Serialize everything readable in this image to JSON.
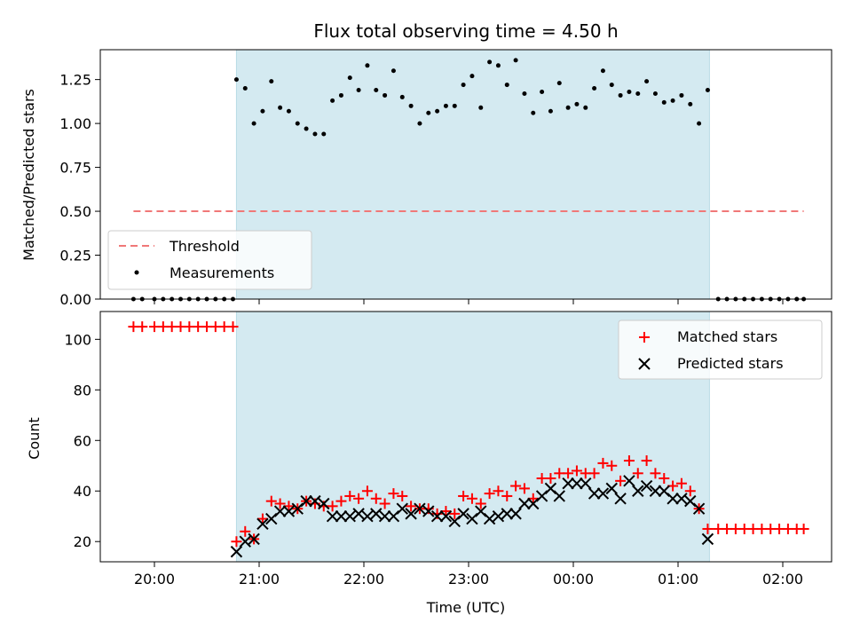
{
  "chart_data": [
    {
      "type": "scatter",
      "title": "Flux total observing time = 4.50 h",
      "xlabel": "",
      "ylabel": "Matched/Predicted stars",
      "ylim": [
        0,
        1.42
      ],
      "yticks": [
        "0.00",
        "0.25",
        "0.50",
        "0.75",
        "1.00",
        "1.25"
      ],
      "ytick_values": [
        0,
        0.25,
        0.5,
        0.75,
        1.0,
        1.25
      ],
      "legend_position": "lower-left",
      "shaded_span": [
        "20:47",
        "01:18"
      ],
      "threshold": {
        "name": "Threshold",
        "value": 0.5,
        "x_start": "19:48",
        "x_end": "02:12",
        "color": "#f07878"
      },
      "series": [
        {
          "name": "Measurements",
          "marker": "dot",
          "color": "#000000",
          "points": [
            [
              "19:48",
              0.0
            ],
            [
              "19:53",
              0.0
            ],
            [
              "20:00",
              0.0
            ],
            [
              "20:05",
              0.0
            ],
            [
              "20:10",
              0.0
            ],
            [
              "20:15",
              0.0
            ],
            [
              "20:20",
              0.0
            ],
            [
              "20:25",
              0.0
            ],
            [
              "20:30",
              0.0
            ],
            [
              "20:35",
              0.0
            ],
            [
              "20:40",
              0.0
            ],
            [
              "20:45",
              0.0
            ],
            [
              "20:47",
              1.25
            ],
            [
              "20:52",
              1.2
            ],
            [
              "20:57",
              1.0
            ],
            [
              "21:02",
              1.07
            ],
            [
              "21:07",
              1.24
            ],
            [
              "21:12",
              1.09
            ],
            [
              "21:17",
              1.07
            ],
            [
              "21:22",
              1.0
            ],
            [
              "21:27",
              0.97
            ],
            [
              "21:32",
              0.94
            ],
            [
              "21:37",
              0.94
            ],
            [
              "21:42",
              1.13
            ],
            [
              "21:47",
              1.16
            ],
            [
              "21:52",
              1.26
            ],
            [
              "21:57",
              1.19
            ],
            [
              "22:02",
              1.33
            ],
            [
              "22:07",
              1.19
            ],
            [
              "22:12",
              1.16
            ],
            [
              "22:17",
              1.3
            ],
            [
              "22:22",
              1.15
            ],
            [
              "22:27",
              1.1
            ],
            [
              "22:32",
              1.0
            ],
            [
              "22:37",
              1.06
            ],
            [
              "22:42",
              1.07
            ],
            [
              "22:47",
              1.1
            ],
            [
              "22:52",
              1.1
            ],
            [
              "22:57",
              1.22
            ],
            [
              "23:02",
              1.27
            ],
            [
              "23:07",
              1.09
            ],
            [
              "23:12",
              1.35
            ],
            [
              "23:17",
              1.33
            ],
            [
              "23:22",
              1.22
            ],
            [
              "23:27",
              1.36
            ],
            [
              "23:32",
              1.17
            ],
            [
              "23:37",
              1.06
            ],
            [
              "23:42",
              1.18
            ],
            [
              "23:47",
              1.07
            ],
            [
              "23:52",
              1.23
            ],
            [
              "23:57",
              1.09
            ],
            [
              "00:02",
              1.11
            ],
            [
              "00:07",
              1.09
            ],
            [
              "00:12",
              1.2
            ],
            [
              "00:17",
              1.3
            ],
            [
              "00:22",
              1.22
            ],
            [
              "00:27",
              1.16
            ],
            [
              "00:32",
              1.18
            ],
            [
              "00:37",
              1.17
            ],
            [
              "00:42",
              1.24
            ],
            [
              "00:47",
              1.17
            ],
            [
              "00:52",
              1.12
            ],
            [
              "00:57",
              1.13
            ],
            [
              "01:02",
              1.16
            ],
            [
              "01:07",
              1.11
            ],
            [
              "01:12",
              1.0
            ],
            [
              "01:17",
              1.19
            ],
            [
              "01:23",
              0.0
            ],
            [
              "01:28",
              0.0
            ],
            [
              "01:33",
              0.0
            ],
            [
              "01:38",
              0.0
            ],
            [
              "01:43",
              0.0
            ],
            [
              "01:48",
              0.0
            ],
            [
              "01:53",
              0.0
            ],
            [
              "01:58",
              0.0
            ],
            [
              "02:03",
              0.0
            ],
            [
              "02:08",
              0.0
            ],
            [
              "02:12",
              0.0
            ]
          ]
        }
      ]
    },
    {
      "type": "scatter",
      "title": "",
      "xlabel": "Time (UTC)",
      "ylabel": "Count",
      "ylim": [
        12,
        111
      ],
      "yticks": [
        "20",
        "40",
        "60",
        "80",
        "100"
      ],
      "ytick_values": [
        20,
        40,
        60,
        80,
        100
      ],
      "xticks": [
        "20:00",
        "21:00",
        "22:00",
        "23:00",
        "00:00",
        "01:00",
        "02:00"
      ],
      "legend_position": "upper-right",
      "shaded_span": [
        "20:47",
        "01:18"
      ],
      "series": [
        {
          "name": "Matched stars",
          "marker": "plus",
          "color": "#ff0000",
          "points": [
            [
              "19:48",
              105
            ],
            [
              "19:53",
              105
            ],
            [
              "20:00",
              105
            ],
            [
              "20:05",
              105
            ],
            [
              "20:10",
              105
            ],
            [
              "20:15",
              105
            ],
            [
              "20:20",
              105
            ],
            [
              "20:25",
              105
            ],
            [
              "20:30",
              105
            ],
            [
              "20:35",
              105
            ],
            [
              "20:40",
              105
            ],
            [
              "20:45",
              105
            ],
            [
              "20:47",
              20
            ],
            [
              "20:52",
              24
            ],
            [
              "20:57",
              21
            ],
            [
              "21:02",
              29
            ],
            [
              "21:07",
              36
            ],
            [
              "21:12",
              35
            ],
            [
              "21:17",
              34
            ],
            [
              "21:22",
              33
            ],
            [
              "21:27",
              36
            ],
            [
              "21:32",
              35
            ],
            [
              "21:37",
              34
            ],
            [
              "21:42",
              34
            ],
            [
              "21:47",
              36
            ],
            [
              "21:52",
              38
            ],
            [
              "21:57",
              37
            ],
            [
              "22:02",
              40
            ],
            [
              "22:07",
              37
            ],
            [
              "22:12",
              35
            ],
            [
              "22:17",
              39
            ],
            [
              "22:22",
              38
            ],
            [
              "22:27",
              34
            ],
            [
              "22:32",
              33
            ],
            [
              "22:37",
              33
            ],
            [
              "22:42",
              31
            ],
            [
              "22:47",
              32
            ],
            [
              "22:52",
              31
            ],
            [
              "22:57",
              38
            ],
            [
              "23:02",
              37
            ],
            [
              "23:07",
              35
            ],
            [
              "23:12",
              39
            ],
            [
              "23:17",
              40
            ],
            [
              "23:22",
              38
            ],
            [
              "23:27",
              42
            ],
            [
              "23:32",
              41
            ],
            [
              "23:37",
              37
            ],
            [
              "23:42",
              45
            ],
            [
              "23:47",
              45
            ],
            [
              "23:52",
              47
            ],
            [
              "23:57",
              47
            ],
            [
              "00:02",
              48
            ],
            [
              "00:07",
              47
            ],
            [
              "00:12",
              47
            ],
            [
              "00:17",
              51
            ],
            [
              "00:22",
              50
            ],
            [
              "00:27",
              44
            ],
            [
              "00:32",
              52
            ],
            [
              "00:37",
              47
            ],
            [
              "00:42",
              52
            ],
            [
              "00:47",
              47
            ],
            [
              "00:52",
              45
            ],
            [
              "00:57",
              42
            ],
            [
              "01:02",
              43
            ],
            [
              "01:07",
              40
            ],
            [
              "01:12",
              33
            ],
            [
              "01:17",
              25
            ],
            [
              "01:23",
              25
            ],
            [
              "01:28",
              25
            ],
            [
              "01:33",
              25
            ],
            [
              "01:38",
              25
            ],
            [
              "01:43",
              25
            ],
            [
              "01:48",
              25
            ],
            [
              "01:53",
              25
            ],
            [
              "01:58",
              25
            ],
            [
              "02:03",
              25
            ],
            [
              "02:08",
              25
            ],
            [
              "02:12",
              25
            ]
          ]
        },
        {
          "name": "Predicted stars",
          "marker": "x",
          "color": "#000000",
          "points": [
            [
              "20:47",
              16
            ],
            [
              "20:52",
              20
            ],
            [
              "20:57",
              21
            ],
            [
              "21:02",
              27
            ],
            [
              "21:07",
              29
            ],
            [
              "21:12",
              32
            ],
            [
              "21:17",
              32
            ],
            [
              "21:22",
              33
            ],
            [
              "21:27",
              36
            ],
            [
              "21:32",
              36
            ],
            [
              "21:37",
              35
            ],
            [
              "21:42",
              30
            ],
            [
              "21:47",
              30
            ],
            [
              "21:52",
              30
            ],
            [
              "21:57",
              31
            ],
            [
              "22:02",
              30
            ],
            [
              "22:07",
              31
            ],
            [
              "22:12",
              30
            ],
            [
              "22:17",
              30
            ],
            [
              "22:22",
              33
            ],
            [
              "22:27",
              31
            ],
            [
              "22:32",
              33
            ],
            [
              "22:37",
              32
            ],
            [
              "22:42",
              30
            ],
            [
              "22:47",
              30
            ],
            [
              "22:52",
              28
            ],
            [
              "22:57",
              31
            ],
            [
              "23:02",
              29
            ],
            [
              "23:07",
              32
            ],
            [
              "23:12",
              29
            ],
            [
              "23:17",
              30
            ],
            [
              "23:22",
              31
            ],
            [
              "23:27",
              31
            ],
            [
              "23:32",
              35
            ],
            [
              "23:37",
              35
            ],
            [
              "23:42",
              38
            ],
            [
              "23:47",
              41
            ],
            [
              "23:52",
              38
            ],
            [
              "23:57",
              43
            ],
            [
              "00:02",
              43
            ],
            [
              "00:07",
              43
            ],
            [
              "00:12",
              39
            ],
            [
              "00:17",
              39
            ],
            [
              "00:22",
              41
            ],
            [
              "00:27",
              37
            ],
            [
              "00:32",
              44
            ],
            [
              "00:37",
              40
            ],
            [
              "00:42",
              42
            ],
            [
              "00:47",
              40
            ],
            [
              "00:52",
              40
            ],
            [
              "00:57",
              37
            ],
            [
              "01:02",
              37
            ],
            [
              "01:07",
              36
            ],
            [
              "01:12",
              33
            ],
            [
              "01:17",
              21
            ]
          ]
        }
      ]
    }
  ],
  "colors": {
    "span": "#d4eaf1",
    "span_edge": "#b9dbe6",
    "threshold": "#f07878",
    "matched": "#ff0000",
    "predicted": "#000000"
  }
}
